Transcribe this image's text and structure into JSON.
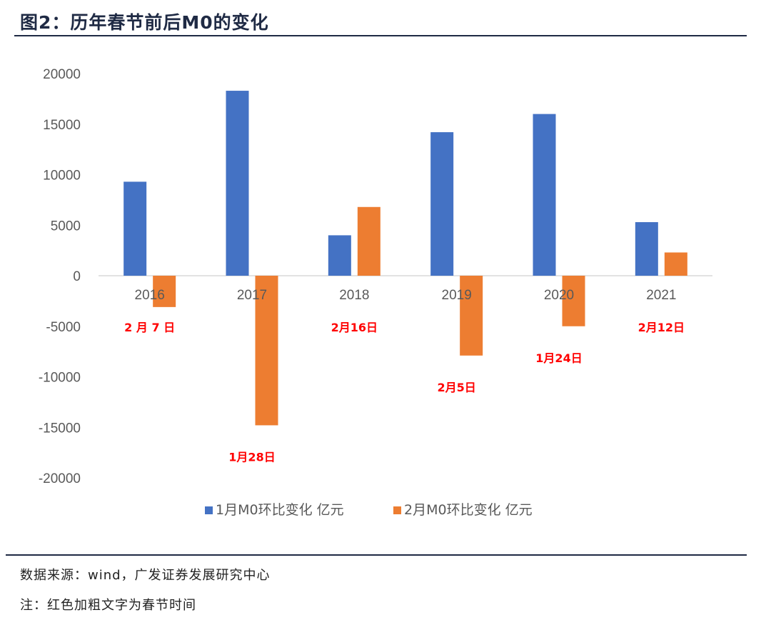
{
  "header": {
    "title": "图2：历年春节前后M0的变化"
  },
  "chart_data": {
    "type": "bar",
    "title": "",
    "xlabel": "",
    "ylabel": "",
    "ylim": [
      -20000,
      20000
    ],
    "yticks": [
      "20000",
      "15000",
      "10000",
      "5000",
      "0",
      "-5000",
      "-10000",
      "-15000",
      "-20000"
    ],
    "categories": [
      "2016",
      "2017",
      "2018",
      "2019",
      "2020",
      "2021"
    ],
    "series": [
      {
        "name": "1月M0环比变化 亿元",
        "color": "#4472C4",
        "values": [
          9300,
          18300,
          4000,
          14200,
          16000,
          5300
        ]
      },
      {
        "name": "2月M0环比变化 亿元",
        "color": "#ED7D31",
        "values": [
          -3100,
          -14800,
          6800,
          -7900,
          -5000,
          2300
        ]
      }
    ],
    "annotations": [
      "2 月 7 日",
      "1月28日",
      "2月16日",
      "2月5日",
      "1月24日",
      "2月12日"
    ],
    "annotation_color": "#FF0000",
    "legend": "bottom"
  },
  "footer": {
    "source": "数据来源：wind，广发证券发展研究中心",
    "note": "注：红色加粗文字为春节时间"
  }
}
